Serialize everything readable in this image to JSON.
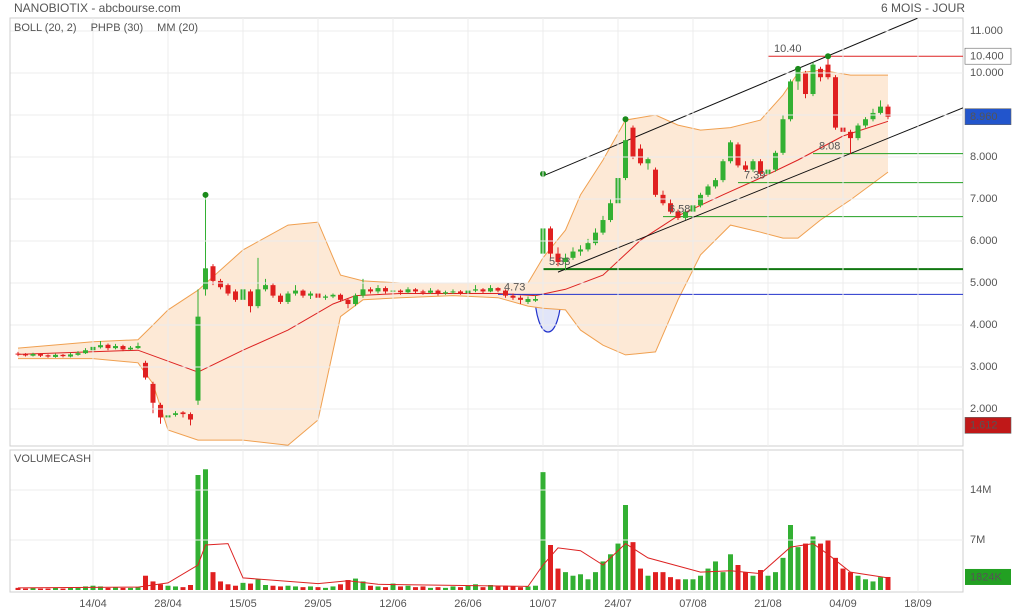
{
  "header": {
    "title": "NANOBIOTIX - abcbourse.com",
    "period": "6 MOIS - JOUR"
  },
  "chart_data": [
    {
      "type": "candlestick",
      "legend": [
        {
          "name": "BOLL (20, 2)",
          "color": "#f0a050"
        },
        {
          "name": "PHPB (30)",
          "color": "#22a022"
        },
        {
          "name": "MM (20)",
          "color": "#dd2222"
        }
      ],
      "xlim": [
        -1,
        126
      ],
      "ylim": [
        1.12,
        11.31
      ],
      "up_color": "#33b033",
      "down_color": "#e02020",
      "grid": true,
      "xticks": [
        {
          "value": 10,
          "label": "14/04"
        },
        {
          "value": 20,
          "label": "28/04"
        },
        {
          "value": 30,
          "label": "15/05"
        },
        {
          "value": 40,
          "label": "29/05"
        },
        {
          "value": 50,
          "label": "12/06"
        },
        {
          "value": 60,
          "label": "26/06"
        },
        {
          "value": 70,
          "label": "10/07"
        },
        {
          "value": 80,
          "label": "24/07"
        },
        {
          "value": 90,
          "label": "07/08"
        },
        {
          "value": 100,
          "label": "21/08"
        },
        {
          "value": 110,
          "label": "04/09"
        },
        {
          "value": 120,
          "label": "18/09"
        }
      ],
      "yticks": [
        {
          "value": 2,
          "label": "2.000"
        },
        {
          "value": 3,
          "label": "3.000"
        },
        {
          "value": 4,
          "label": "4.000"
        },
        {
          "value": 5,
          "label": "5.000"
        },
        {
          "value": 6,
          "label": "6.000"
        },
        {
          "value": 7,
          "label": "7.000"
        },
        {
          "value": 8,
          "label": "8.000"
        },
        {
          "value": 9,
          "label": "9.000"
        },
        {
          "value": 10,
          "label": "10.000"
        },
        {
          "value": 11,
          "label": "11.000"
        }
      ],
      "candles": [
        [
          3.32,
          3.36,
          3.26,
          3.3
        ],
        [
          3.3,
          3.33,
          3.25,
          3.28
        ],
        [
          3.27,
          3.34,
          3.25,
          3.31
        ],
        [
          3.31,
          3.33,
          3.24,
          3.27
        ],
        [
          3.28,
          3.3,
          3.22,
          3.25
        ],
        [
          3.24,
          3.32,
          3.22,
          3.29
        ],
        [
          3.29,
          3.31,
          3.23,
          3.26
        ],
        [
          3.25,
          3.34,
          3.23,
          3.3
        ],
        [
          3.29,
          3.38,
          3.27,
          3.33
        ],
        [
          3.33,
          3.45,
          3.31,
          3.4
        ],
        [
          3.4,
          3.6,
          3.38,
          3.48
        ],
        [
          3.47,
          3.62,
          3.44,
          3.52
        ],
        [
          3.53,
          3.56,
          3.4,
          3.45
        ],
        [
          3.45,
          3.55,
          3.42,
          3.5
        ],
        [
          3.5,
          3.53,
          3.38,
          3.42
        ],
        [
          3.42,
          3.5,
          3.4,
          3.46
        ],
        [
          3.45,
          3.58,
          3.43,
          3.5
        ],
        [
          3.1,
          3.15,
          2.7,
          2.75
        ],
        [
          2.6,
          2.65,
          1.9,
          2.15
        ],
        [
          2.1,
          2.15,
          1.65,
          1.8
        ],
        [
          1.8,
          1.92,
          1.75,
          1.85
        ],
        [
          1.86,
          1.95,
          1.82,
          1.9
        ],
        [
          1.92,
          1.95,
          1.8,
          1.88
        ],
        [
          1.88,
          1.92,
          1.61,
          1.75
        ],
        [
          2.2,
          4.85,
          2.1,
          4.2
        ],
        [
          4.85,
          7.1,
          4.7,
          5.35
        ],
        [
          5.4,
          5.45,
          4.95,
          5.05
        ],
        [
          5.05,
          5.1,
          4.85,
          4.9
        ],
        [
          4.95,
          5.0,
          4.7,
          4.75
        ],
        [
          4.8,
          4.85,
          4.55,
          4.6
        ],
        [
          4.6,
          4.95,
          4.55,
          4.85
        ],
        [
          4.8,
          4.85,
          4.3,
          4.45
        ],
        [
          4.45,
          5.6,
          4.4,
          4.85
        ],
        [
          4.85,
          5.1,
          4.8,
          4.95
        ],
        [
          4.95,
          5.0,
          4.65,
          4.7
        ],
        [
          4.7,
          4.75,
          4.5,
          4.55
        ],
        [
          4.55,
          4.8,
          4.5,
          4.75
        ],
        [
          4.75,
          4.95,
          4.7,
          4.82
        ],
        [
          4.82,
          4.85,
          4.65,
          4.7
        ],
        [
          4.7,
          4.8,
          4.62,
          4.75
        ],
        [
          4.75,
          4.78,
          4.6,
          4.65
        ],
        [
          4.65,
          4.72,
          4.6,
          4.68
        ],
        [
          4.68,
          4.75,
          4.64,
          4.72
        ],
        [
          4.72,
          4.75,
          4.55,
          4.6
        ],
        [
          4.6,
          4.62,
          4.4,
          4.5
        ],
        [
          4.5,
          4.75,
          4.45,
          4.7
        ],
        [
          4.7,
          5.1,
          4.65,
          4.85
        ],
        [
          4.85,
          4.9,
          4.75,
          4.8
        ],
        [
          4.8,
          4.95,
          4.75,
          4.88
        ],
        [
          4.88,
          4.92,
          4.75,
          4.8
        ],
        [
          4.8,
          4.9,
          4.76,
          4.82
        ],
        [
          4.82,
          4.85,
          4.72,
          4.78
        ],
        [
          4.78,
          4.9,
          4.75,
          4.85
        ],
        [
          4.85,
          4.88,
          4.76,
          4.8
        ],
        [
          4.8,
          4.84,
          4.72,
          4.77
        ],
        [
          4.77,
          4.88,
          4.74,
          4.82
        ],
        [
          4.82,
          4.85,
          4.7,
          4.75
        ],
        [
          4.75,
          4.82,
          4.72,
          4.78
        ],
        [
          4.78,
          4.85,
          4.74,
          4.8
        ],
        [
          4.8,
          4.83,
          4.72,
          4.76
        ],
        [
          4.76,
          4.88,
          4.74,
          4.82
        ],
        [
          4.82,
          4.95,
          4.78,
          4.85
        ],
        [
          4.85,
          4.88,
          4.76,
          4.8
        ],
        [
          4.8,
          4.95,
          4.78,
          4.88
        ],
        [
          4.88,
          4.9,
          4.78,
          4.82
        ],
        [
          4.82,
          4.85,
          4.65,
          4.7
        ],
        [
          4.7,
          4.75,
          4.6,
          4.65
        ],
        [
          4.65,
          4.7,
          4.5,
          4.6
        ],
        [
          4.55,
          4.68,
          4.5,
          4.62
        ],
        [
          4.58,
          4.7,
          4.55,
          4.62
        ],
        [
          5.7,
          7.6,
          5.6,
          6.3
        ],
        [
          6.3,
          6.35,
          5.6,
          5.7
        ],
        [
          5.7,
          5.85,
          5.4,
          5.5
        ],
        [
          5.5,
          5.7,
          5.3,
          5.6
        ],
        [
          5.6,
          5.85,
          5.55,
          5.75
        ],
        [
          5.75,
          5.9,
          5.65,
          5.8
        ],
        [
          5.8,
          6.05,
          5.75,
          5.95
        ],
        [
          5.95,
          6.3,
          5.9,
          6.2
        ],
        [
          6.2,
          6.6,
          6.15,
          6.5
        ],
        [
          6.5,
          7.0,
          6.45,
          6.9
        ],
        [
          6.9,
          7.6,
          6.85,
          7.5
        ],
        [
          7.5,
          8.9,
          7.45,
          8.4
        ],
        [
          8.7,
          8.75,
          7.95,
          8.0
        ],
        [
          8.2,
          8.3,
          7.8,
          7.85
        ],
        [
          7.85,
          8.0,
          7.7,
          7.95
        ],
        [
          7.7,
          7.75,
          7.05,
          7.1
        ],
        [
          7.1,
          7.2,
          6.85,
          6.9
        ],
        [
          6.9,
          7.0,
          6.65,
          6.7
        ],
        [
          6.7,
          6.75,
          6.5,
          6.55
        ],
        [
          6.55,
          6.75,
          6.5,
          6.7
        ],
        [
          6.7,
          6.9,
          6.65,
          6.85
        ],
        [
          6.85,
          7.15,
          6.8,
          7.1
        ],
        [
          7.1,
          7.35,
          7.05,
          7.3
        ],
        [
          7.3,
          7.5,
          7.25,
          7.45
        ],
        [
          7.45,
          7.95,
          7.4,
          7.9
        ],
        [
          7.9,
          8.4,
          7.85,
          8.35
        ],
        [
          8.3,
          8.35,
          7.75,
          7.8
        ],
        [
          7.8,
          7.9,
          7.65,
          7.7
        ],
        [
          7.7,
          7.95,
          7.65,
          7.9
        ],
        [
          7.9,
          7.95,
          7.55,
          7.6
        ],
        [
          7.6,
          7.75,
          7.39,
          7.7
        ],
        [
          7.7,
          8.15,
          7.65,
          8.1
        ],
        [
          8.1,
          9.0,
          8.05,
          8.9
        ],
        [
          8.9,
          9.85,
          8.85,
          9.8
        ],
        [
          9.8,
          10.1,
          9.6,
          10.05
        ],
        [
          10.0,
          10.05,
          9.4,
          9.5
        ],
        [
          9.5,
          10.25,
          9.45,
          10.2
        ],
        [
          10.1,
          10.15,
          9.8,
          9.9
        ],
        [
          10.2,
          10.4,
          9.85,
          9.9
        ],
        [
          9.9,
          9.95,
          8.65,
          8.7
        ],
        [
          8.7,
          8.8,
          8.5,
          8.6
        ],
        [
          8.6,
          8.65,
          8.08,
          8.45
        ],
        [
          8.45,
          8.8,
          8.4,
          8.75
        ],
        [
          8.75,
          8.95,
          8.7,
          8.9
        ],
        [
          8.9,
          9.15,
          8.85,
          9.05
        ],
        [
          9.05,
          9.35,
          9.0,
          9.2
        ],
        [
          9.2,
          9.25,
          8.9,
          8.96
        ]
      ],
      "bollinger": {
        "color": "#f0a050",
        "fill": "#fde9d6",
        "x": [
          0,
          10,
          16,
          18,
          20,
          24,
          30,
          36,
          40,
          43,
          46,
          51,
          58,
          64,
          68,
          70,
          73,
          75,
          78,
          81,
          85,
          88,
          91,
          95,
          99,
          102,
          104,
          107,
          111,
          116
        ],
        "upper": [
          3.45,
          3.6,
          3.65,
          4.0,
          4.36,
          4.83,
          5.79,
          6.38,
          6.45,
          5.19,
          5.05,
          5.0,
          5.0,
          5.0,
          5.0,
          5.6,
          6.26,
          7.1,
          7.93,
          8.88,
          9.0,
          8.76,
          8.64,
          8.7,
          8.88,
          9.48,
          10.0,
          10.07,
          9.95,
          9.95
        ],
        "lower": [
          3.2,
          3.2,
          3.1,
          2.6,
          1.5,
          1.26,
          1.26,
          1.14,
          1.74,
          4.2,
          4.6,
          4.65,
          4.7,
          4.65,
          4.45,
          4.4,
          4.36,
          3.88,
          3.52,
          3.29,
          3.36,
          4.6,
          5.67,
          6.38,
          6.21,
          6.07,
          6.07,
          6.5,
          6.98,
          7.64
        ]
      },
      "moving_average": {
        "color": "#dd2222",
        "x": [
          0,
          16,
          24,
          30,
          36,
          42,
          45,
          51,
          64,
          69,
          73,
          78,
          83,
          88,
          94,
          99,
          104,
          110,
          116
        ],
        "values": [
          3.3,
          3.4,
          2.88,
          3.4,
          3.88,
          4.5,
          4.7,
          4.75,
          4.75,
          4.7,
          4.85,
          5.19,
          6.02,
          6.6,
          7.1,
          7.5,
          7.93,
          8.5,
          8.85
        ]
      },
      "trendlines": [
        {
          "x": [
            70,
            120
          ],
          "y": [
            7.55,
            11.31
          ]
        },
        {
          "x": [
            72,
            126
          ],
          "y": [
            5.26,
            9.17
          ]
        }
      ],
      "levels": [
        {
          "value": 10.4,
          "label": "10.40",
          "start": 100,
          "color": "#dd2222",
          "width": 1
        },
        {
          "value": 8.08,
          "start": 106,
          "color": "#22a022",
          "width": 1
        },
        {
          "value": 7.39,
          "start": 96,
          "color": "#22a022",
          "width": 1
        },
        {
          "value": 6.58,
          "start": 86,
          "color": "#22a022",
          "width": 1
        },
        {
          "value": 5.33,
          "start": 70,
          "color": "#117711",
          "width": 2
        },
        {
          "value": 4.73,
          "start": 64,
          "color": "#2233cc",
          "width": 1
        }
      ],
      "pivots": [
        25,
        70,
        81,
        104,
        108
      ],
      "price_tags": [
        {
          "value": 10.4,
          "label": "10.400",
          "color": "#ffffff",
          "text_color": "#222222"
        },
        {
          "value": 8.96,
          "label": "8.960",
          "color": "#2255cc",
          "text_color": "#ffffff"
        },
        {
          "value": 1.612,
          "label": "1.612",
          "color": "#c01818",
          "text_color": "#ffffff"
        }
      ]
    },
    {
      "type": "bar",
      "title": "VOLUMECASH",
      "xlim": [
        -1,
        126
      ],
      "ylim": [
        0,
        19.6
      ],
      "yticks": [
        {
          "value": 7,
          "label": "7M"
        },
        {
          "value": 14,
          "label": "14M"
        }
      ],
      "values": [
        0.3,
        0.2,
        0.3,
        0.2,
        0.2,
        0.3,
        0.2,
        0.3,
        0.4,
        0.5,
        0.6,
        0.5,
        0.3,
        0.4,
        0.3,
        0.3,
        0.4,
        2.0,
        1.2,
        0.8,
        0.6,
        0.5,
        0.4,
        0.7,
        16.1,
        16.9,
        2.5,
        1.2,
        0.8,
        0.6,
        1.0,
        0.9,
        1.5,
        0.7,
        0.6,
        0.5,
        0.6,
        0.5,
        0.4,
        0.5,
        0.4,
        0.3,
        0.5,
        0.8,
        1.4,
        1.6,
        1.2,
        0.6,
        0.5,
        0.4,
        0.9,
        0.5,
        0.6,
        0.4,
        0.5,
        0.3,
        0.4,
        0.3,
        0.5,
        0.4,
        0.6,
        0.8,
        0.4,
        0.7,
        0.5,
        0.6,
        0.5,
        0.4,
        0.5,
        0.6,
        16.5,
        6.3,
        3.0,
        2.5,
        2.0,
        2.2,
        1.5,
        2.5,
        4.0,
        5.0,
        6.5,
        11.9,
        6.7,
        3.0,
        2.0,
        2.5,
        2.5,
        1.8,
        1.5,
        1.5,
        1.5,
        2.0,
        3.0,
        4.0,
        2.5,
        5.0,
        3.5,
        2.5,
        2.0,
        2.8,
        2.0,
        2.5,
        4.5,
        9.1,
        6.0,
        6.5,
        7.5,
        6.5,
        7.0,
        4.5,
        3.0,
        2.5,
        2.0,
        1.5,
        1.2,
        1.8,
        1.824
      ],
      "moving_average": {
        "color": "#dd2222",
        "x": [
          0,
          16,
          20,
          24,
          25,
          28,
          30,
          40,
          44,
          48,
          68,
          70,
          72,
          75,
          78,
          81,
          84,
          91,
          95,
          99,
          103,
          106,
          108,
          111,
          116
        ],
        "values": [
          0.3,
          0.4,
          1.0,
          3.5,
          6.3,
          6.5,
          1.7,
          0.9,
          1.3,
          0.8,
          0.5,
          3.5,
          5.9,
          5.5,
          3.5,
          6.5,
          4.5,
          2.5,
          2.7,
          2.3,
          6.0,
          6.5,
          5.0,
          2.5,
          1.7
        ]
      },
      "value_tag": {
        "value": 1.824,
        "label": "1824K",
        "color": "#22a022",
        "text_color": "#ffffff"
      }
    }
  ]
}
